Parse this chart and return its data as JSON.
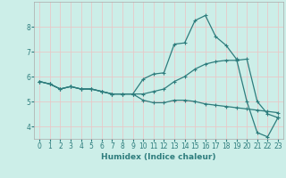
{
  "xlabel": "Humidex (Indice chaleur)",
  "x": [
    0,
    1,
    2,
    3,
    4,
    5,
    6,
    7,
    8,
    9,
    10,
    11,
    12,
    13,
    14,
    15,
    16,
    17,
    18,
    19,
    20,
    21,
    22,
    23
  ],
  "line1": [
    5.8,
    5.7,
    5.5,
    5.6,
    5.5,
    5.5,
    5.4,
    5.3,
    5.3,
    5.3,
    5.05,
    4.95,
    4.95,
    5.05,
    5.05,
    5.0,
    4.9,
    4.85,
    4.8,
    4.75,
    4.7,
    4.65,
    4.6,
    4.55
  ],
  "line2": [
    5.8,
    5.7,
    5.5,
    5.6,
    5.5,
    5.5,
    5.4,
    5.3,
    5.3,
    5.3,
    5.9,
    6.1,
    6.15,
    7.3,
    7.35,
    8.25,
    8.45,
    7.6,
    7.25,
    6.7,
    5.0,
    3.75,
    3.58,
    4.35
  ],
  "line3": [
    5.8,
    5.7,
    5.5,
    5.6,
    5.5,
    5.5,
    5.4,
    5.3,
    5.3,
    5.3,
    5.3,
    5.4,
    5.5,
    5.8,
    6.0,
    6.3,
    6.5,
    6.6,
    6.65,
    6.65,
    6.7,
    5.0,
    4.5,
    4.35
  ],
  "line_color": "#2e7d7d",
  "bg_color": "#cceee8",
  "grid_color": "#e8c8c8",
  "ylim": [
    3.5,
    9.0
  ],
  "xlim": [
    -0.5,
    23.5
  ],
  "yticks": [
    4,
    5,
    6,
    7,
    8
  ],
  "xticks": [
    0,
    1,
    2,
    3,
    4,
    5,
    6,
    7,
    8,
    9,
    10,
    11,
    12,
    13,
    14,
    15,
    16,
    17,
    18,
    19,
    20,
    21,
    22,
    23
  ],
  "tick_fontsize": 5.5,
  "xlabel_fontsize": 6.5
}
